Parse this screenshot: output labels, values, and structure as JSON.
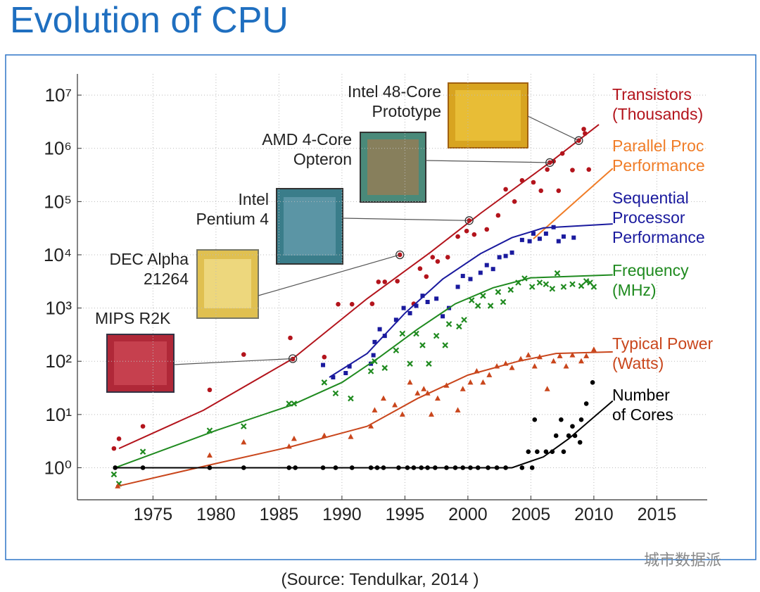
{
  "header": {
    "title": "Evolution of CPU"
  },
  "chart_data": {
    "type": "scatter",
    "log_y": true,
    "grid": true,
    "xlim": [
      1969,
      2019
    ],
    "xticks": [
      1975,
      1980,
      1985,
      1990,
      1995,
      2000,
      2005,
      2010,
      2015
    ],
    "ylim": [
      0.25,
      25000000
    ],
    "yticks": [
      {
        "value": 1,
        "label": "10⁰"
      },
      {
        "value": 10,
        "label": "10¹"
      },
      {
        "value": 100,
        "label": "10²"
      },
      {
        "value": 1000,
        "label": "10³"
      },
      {
        "value": 10000,
        "label": "10⁴"
      },
      {
        "value": 100000,
        "label": "10⁵"
      },
      {
        "value": 1000000,
        "label": "10⁶"
      },
      {
        "value": 10000000,
        "label": "10⁷"
      }
    ],
    "series": [
      {
        "name": "Transistors\n(Thousands)",
        "color": "#b3141c",
        "marker": "circle",
        "x": [
          1971.9,
          1972.3,
          1974.2,
          1979.5,
          1982.2,
          1985.9,
          1986.1,
          1988.6,
          1989.7,
          1990.8,
          1992.4,
          1992.9,
          1993.4,
          1994.4,
          1994.6,
          1995.7,
          1996.2,
          1996.7,
          1997.2,
          1997.6,
          1998.4,
          1999.2,
          1999.9,
          2000.1,
          2000.5,
          2001.5,
          2002.4,
          2003.0,
          2003.7,
          2004.3,
          2005.2,
          2005.8,
          2006.3,
          2006.5,
          2006.8,
          2007.2,
          2007.5,
          2008.3,
          2008.8,
          2009.2,
          2009.3,
          2009.6
        ],
        "values": [
          2.3,
          3.5,
          6,
          29,
          134,
          275,
          110,
          120,
          1180,
          1180,
          1200,
          3100,
          3100,
          3200,
          10000,
          1200,
          5500,
          3900,
          9000,
          7500,
          9000,
          22000,
          28000,
          44000,
          24000,
          30000,
          55000,
          170000,
          100000,
          250000,
          230000,
          160000,
          400000,
          540000,
          570000,
          160000,
          800000,
          390000,
          1400000,
          2300000,
          1900000,
          400000
        ],
        "line_x": [
          1972.3,
          1979,
          1986.1,
          1992,
          1997,
          2001,
          2006.5,
          2010.4
        ],
        "line_y": [
          2.3,
          12,
          112,
          1500,
          11000,
          60000,
          540000,
          2800000
        ]
      },
      {
        "name": "Parallel Proc\nPerformance",
        "color": "#f07d28",
        "marker": "none",
        "x": [],
        "values": [],
        "line_x": [
          2005.2,
          2011.5
        ],
        "line_y": [
          20000,
          420000
        ]
      },
      {
        "name": "Sequential\nProcessor\nPerformance",
        "color": "#1a1a9e",
        "marker": "square",
        "x": [
          1988.5,
          1989.3,
          1990.3,
          1990.6,
          1992.3,
          1992.5,
          1992.6,
          1993.0,
          1993.4,
          1994.3,
          1994.9,
          1995.4,
          1995.9,
          1996.4,
          1996.8,
          1997.5,
          1998.0,
          1998.5,
          1999.2,
          1999.6,
          2000.2,
          2001.0,
          2001.5,
          2002.0,
          2002.5,
          2003.0,
          2003.5,
          2004.3,
          2004.9,
          2005.2,
          2005.7,
          2006.2,
          2006.8,
          2007.2,
          2007.6,
          2008.4
        ],
        "values": [
          85,
          50,
          60,
          80,
          90,
          130,
          230,
          400,
          300,
          600,
          1000,
          800,
          1100,
          1700,
          1300,
          1500,
          700,
          1000,
          2500,
          4000,
          3500,
          4600,
          6400,
          5400,
          9000,
          9500,
          11000,
          19000,
          18000,
          25000,
          20000,
          25000,
          33000,
          18000,
          22000,
          21000
        ],
        "line_x": [
          1989,
          1992,
          1995,
          1998,
          2001,
          2003.5,
          2006,
          2011.5
        ],
        "line_y": [
          50,
          140,
          800,
          3500,
          10500,
          21000,
          32000,
          38000
        ]
      },
      {
        "name": "Frequency\n(MHz)",
        "color": "#1f8a1f",
        "marker": "x",
        "x": [
          1971.9,
          1972.3,
          1974.2,
          1979.5,
          1982.2,
          1985.8,
          1986.2,
          1988.6,
          1989.5,
          1990.7,
          1992.3,
          1992.6,
          1993.4,
          1994.3,
          1994.8,
          1995.4,
          1995.9,
          1996.4,
          1996.9,
          1997.5,
          1998.2,
          1998.5,
          1999.3,
          1999.7,
          2000.3,
          2000.8,
          2001.2,
          2001.8,
          2002.4,
          2002.8,
          2003.4,
          2004.0,
          2004.5,
          2005.1,
          2005.7,
          2006.2,
          2006.7,
          2007.1,
          2007.6,
          2008.3,
          2009.0,
          2009.4,
          2009.7,
          2010.0
        ],
        "values": [
          0.75,
          0.5,
          2,
          5,
          6,
          16,
          16,
          40,
          25,
          20,
          65,
          100,
          75,
          160,
          330,
          90,
          330,
          200,
          90,
          300,
          200,
          500,
          450,
          600,
          1400,
          1100,
          1700,
          1100,
          2000,
          1300,
          2200,
          3000,
          3600,
          2500,
          3000,
          2800,
          2300,
          4500,
          2500,
          2800,
          2600,
          3200,
          3000,
          2500
        ],
        "line_x": [
          1972,
          1980,
          1986,
          1990,
          1993,
          1996,
          1999,
          2002,
          2005,
          2011.5
        ],
        "line_y": [
          1,
          5,
          15,
          40,
          120,
          400,
          1200,
          2400,
          3700,
          4200
        ]
      },
      {
        "name": "Typical Power\n(Watts)",
        "color": "#c9461c",
        "marker": "triangle",
        "x": [
          1972.2,
          1979.5,
          1982.2,
          1985.8,
          1986.2,
          1988.6,
          1990.7,
          1992.3,
          1992.6,
          1993.3,
          1994.2,
          1994.8,
          1995.4,
          1996.0,
          1996.5,
          1996.8,
          1997.1,
          1997.6,
          1998.3,
          1999.2,
          1999.6,
          2000.2,
          2000.7,
          2001.2,
          2001.7,
          2002.3,
          2003.0,
          2003.5,
          2004.2,
          2004.8,
          2005.3,
          2005.7,
          2006.3,
          2006.8,
          2007.3,
          2007.8,
          2008.3,
          2009.0,
          2009.4,
          2010.0
        ],
        "values": [
          0.45,
          1.7,
          3,
          2.5,
          3.5,
          4,
          3.8,
          6,
          12,
          20,
          15,
          10,
          40,
          25,
          30,
          25,
          10,
          20,
          35,
          12,
          30,
          40,
          65,
          40,
          55,
          80,
          90,
          75,
          110,
          130,
          80,
          120,
          30,
          100,
          125,
          80,
          130,
          100,
          125,
          165
        ],
        "line_x": [
          1972.2,
          1980,
          1986,
          1992,
          1996,
          2000,
          2004,
          2007,
          2011.5
        ],
        "line_y": [
          0.45,
          1.2,
          2.5,
          6,
          20,
          55,
          100,
          140,
          150
        ]
      },
      {
        "name": "Number\nof Cores",
        "color": "#000000",
        "marker": "circle",
        "x": [
          1972,
          1974.2,
          1979.5,
          1982.2,
          1985.8,
          1986.3,
          1988.5,
          1989.5,
          1990.8,
          1992.3,
          1992.8,
          1993.3,
          1994.5,
          1995.2,
          1995.7,
          1996.3,
          1996.8,
          1997.4,
          1998.3,
          1999.0,
          1999.6,
          2000.2,
          2000.8,
          2001.6,
          2002.3,
          2003.0,
          2004.3,
          2004.8,
          2005.1,
          2005.3,
          2005.5,
          2006.2,
          2006.7,
          2007.0,
          2007.4,
          2007.6,
          2008.0,
          2008.3,
          2008.5,
          2008.9,
          2009.0,
          2009.4,
          2009.9
        ],
        "values": [
          1,
          1,
          1,
          1,
          1,
          1,
          1,
          1,
          1,
          1,
          1,
          1,
          1,
          1,
          1,
          1,
          1,
          1,
          1,
          1,
          1,
          1,
          1,
          1,
          1,
          1,
          1,
          2,
          1,
          8,
          2,
          2,
          2,
          4,
          8,
          2,
          4,
          6,
          4,
          3,
          8,
          16,
          40
        ],
        "line_x": [
          1972,
          2003.5,
          2006,
          2008,
          2011.5
        ],
        "line_y": [
          1,
          1,
          1.6,
          3.5,
          18
        ]
      }
    ],
    "annotations": [
      {
        "text": "MIPS R2K",
        "x": 1986.1,
        "y": 112
      },
      {
        "text": "DEC Alpha\n21264",
        "x": 1994.6,
        "y": 10000
      },
      {
        "text": "Intel\nPentium 4",
        "x": 2000.1,
        "y": 44000
      },
      {
        "text": "AMD 4-Core\nOpteron",
        "x": 2006.5,
        "y": 540000
      },
      {
        "text": "Intel 48-Core\nPrototype",
        "x": 2008.8,
        "y": 1400000
      }
    ]
  },
  "footer": {
    "source": "(Source: Tendulkar, 2014 )",
    "watermark": "城市数据派"
  }
}
